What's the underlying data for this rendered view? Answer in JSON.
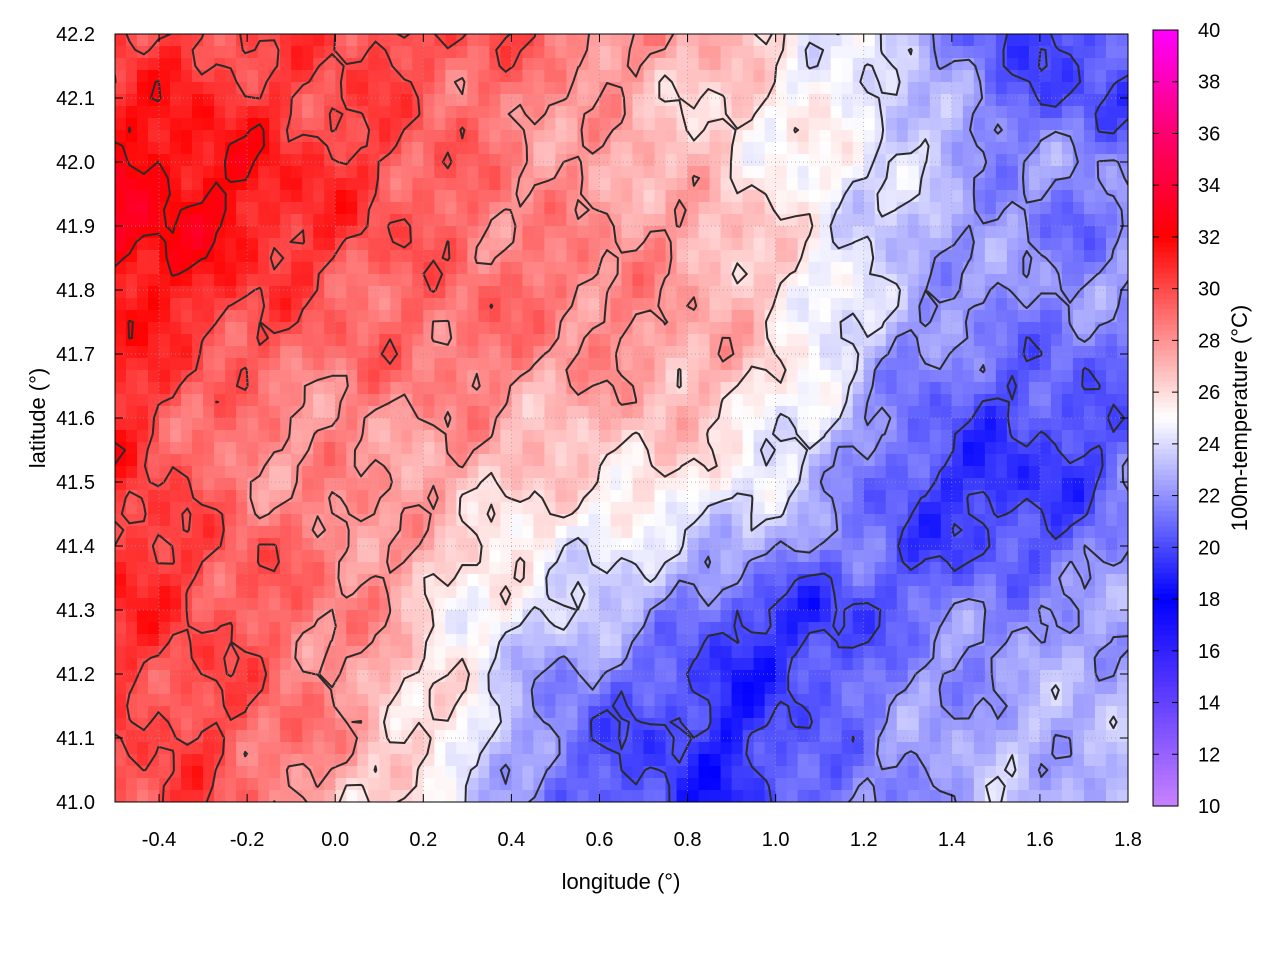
{
  "chart_data": {
    "type": "heatmap",
    "title": "",
    "xlabel": "longitude (°)",
    "ylabel": "latitude (°)",
    "colorbar_label": "100m-temperature (°C)",
    "xlim": [
      -0.5,
      1.8
    ],
    "ylim": [
      41.0,
      42.2
    ],
    "zlim": [
      10,
      40
    ],
    "grid": true,
    "x_ticks": [
      {
        "value": -0.4,
        "label": "-0.4"
      },
      {
        "value": -0.2,
        "label": "-0.2"
      },
      {
        "value": 0.0,
        "label": "0.0"
      },
      {
        "value": 0.2,
        "label": "0.2"
      },
      {
        "value": 0.4,
        "label": "0.4"
      },
      {
        "value": 0.6,
        "label": "0.6"
      },
      {
        "value": 0.8,
        "label": "0.8"
      },
      {
        "value": 1.0,
        "label": "1.0"
      },
      {
        "value": 1.2,
        "label": "1.2"
      },
      {
        "value": 1.4,
        "label": "1.4"
      },
      {
        "value": 1.6,
        "label": "1.6"
      },
      {
        "value": 1.8,
        "label": "1.8"
      }
    ],
    "y_ticks": [
      {
        "value": 41.0,
        "label": "41.0"
      },
      {
        "value": 41.1,
        "label": "41.1"
      },
      {
        "value": 41.2,
        "label": "41.2"
      },
      {
        "value": 41.3,
        "label": "41.3"
      },
      {
        "value": 41.4,
        "label": "41.4"
      },
      {
        "value": 41.5,
        "label": "41.5"
      },
      {
        "value": 41.6,
        "label": "41.6"
      },
      {
        "value": 41.7,
        "label": "41.7"
      },
      {
        "value": 41.8,
        "label": "41.8"
      },
      {
        "value": 41.9,
        "label": "41.9"
      },
      {
        "value": 42.0,
        "label": "42.0"
      },
      {
        "value": 42.1,
        "label": "42.1"
      },
      {
        "value": 42.2,
        "label": "42.2"
      }
    ],
    "colorbar_ticks": [
      {
        "value": 10,
        "label": "10"
      },
      {
        "value": 12,
        "label": "12"
      },
      {
        "value": 14,
        "label": "14"
      },
      {
        "value": 16,
        "label": "16"
      },
      {
        "value": 18,
        "label": "18"
      },
      {
        "value": 20,
        "label": "20"
      },
      {
        "value": 22,
        "label": "22"
      },
      {
        "value": 24,
        "label": "24"
      },
      {
        "value": 26,
        "label": "26"
      },
      {
        "value": 28,
        "label": "28"
      },
      {
        "value": 30,
        "label": "30"
      },
      {
        "value": 32,
        "label": "32"
      },
      {
        "value": 34,
        "label": "34"
      },
      {
        "value": 36,
        "label": "36"
      },
      {
        "value": 38,
        "label": "38"
      },
      {
        "value": 40,
        "label": "40"
      }
    ],
    "colormap": [
      {
        "value": 10,
        "color": "#c882ff"
      },
      {
        "value": 18,
        "color": "#0000ff"
      },
      {
        "value": 25,
        "color": "#ffffff"
      },
      {
        "value": 32,
        "color": "#ff0000"
      },
      {
        "value": 36,
        "color": "#ff0070"
      },
      {
        "value": 40,
        "color": "#ff00ff"
      }
    ],
    "temperature_field": {
      "lon": [
        -0.5,
        -0.3,
        -0.1,
        0.1,
        0.3,
        0.5,
        0.7,
        0.9,
        1.1,
        1.3,
        1.5,
        1.7,
        1.8
      ],
      "lat": [
        42.2,
        42.1,
        42.0,
        41.9,
        41.8,
        41.7,
        41.6,
        41.5,
        41.4,
        41.3,
        41.2,
        41.1,
        41.0
      ],
      "values": [
        [
          30,
          30,
          30,
          30,
          30,
          29,
          28,
          27,
          25,
          23,
          20,
          20,
          20
        ],
        [
          31,
          31,
          30,
          30,
          29,
          28,
          27,
          26,
          25,
          24,
          21,
          20,
          20
        ],
        [
          32,
          32,
          31,
          30,
          29,
          28,
          27,
          26,
          25,
          24,
          22,
          22,
          22
        ],
        [
          33,
          32,
          31,
          30,
          29,
          28,
          28,
          27,
          25,
          23,
          22,
          21,
          22
        ],
        [
          32,
          31,
          30,
          29,
          29,
          29,
          28,
          27,
          25,
          23,
          22,
          22,
          22
        ],
        [
          31,
          30,
          29,
          29,
          29,
          28,
          28,
          27,
          25,
          22,
          21,
          21,
          21
        ],
        [
          31,
          29,
          28,
          28,
          28,
          27,
          27,
          26,
          24,
          21,
          20,
          20,
          21
        ],
        [
          31,
          29,
          28,
          28,
          27,
          26,
          26,
          25,
          23,
          20,
          19,
          20,
          21
        ],
        [
          31,
          30,
          29,
          28,
          26,
          25,
          24,
          23,
          22,
          20,
          20,
          21,
          22
        ],
        [
          31,
          30,
          29,
          28,
          25,
          24,
          23,
          20,
          19,
          21,
          22,
          22,
          23
        ],
        [
          30,
          30,
          29,
          27,
          25,
          22,
          21,
          19,
          20,
          22,
          22,
          23,
          23
        ],
        [
          30,
          30,
          29,
          27,
          25,
          21,
          20,
          19,
          21,
          22,
          23,
          23,
          23
        ],
        [
          30,
          30,
          28,
          26,
          24,
          21,
          20,
          19,
          21,
          22,
          23,
          23,
          23
        ]
      ]
    },
    "contour_levels": [
      20,
      22,
      24,
      26,
      28,
      30,
      32
    ]
  }
}
